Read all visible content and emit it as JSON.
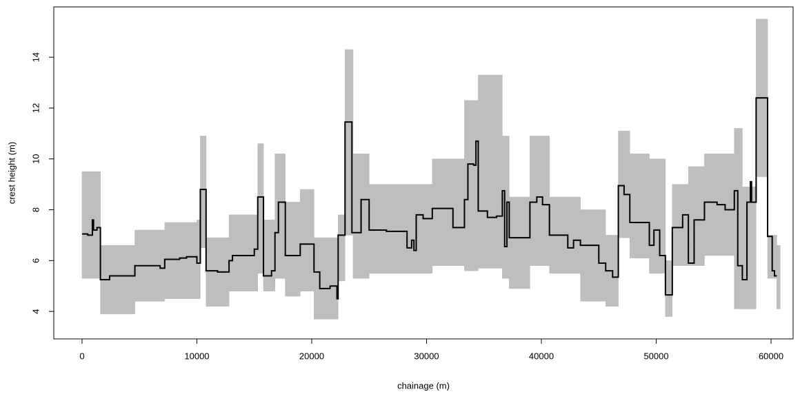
{
  "chart_data": {
    "type": "step",
    "x_label": "chainage (m)",
    "y_label": "crest height (m)",
    "xlim": [
      -2460,
      61920
    ],
    "ylim": [
      2.92,
      15.98
    ],
    "xticks": [
      0,
      10000,
      20000,
      30000,
      40000,
      50000,
      60000
    ],
    "yticks": [
      4,
      6,
      8,
      10,
      12,
      14
    ],
    "series": [
      {
        "color": "#bebebe",
        "x": [
          0,
          1600,
          4600,
          7200,
          10000,
          10300,
          10800,
          12800,
          15300,
          15800,
          16800,
          17700,
          19000,
          20200,
          22300,
          22900,
          23600,
          25000,
          29000,
          30500,
          33300,
          34500,
          36600,
          37200,
          39000,
          40700,
          43400,
          45600,
          46700,
          47700,
          49400,
          50800,
          51400,
          52800,
          54200,
          56800,
          57500,
          58700,
          59700,
          60500
        ],
        "values": [
          9.5,
          6.6,
          7.2,
          7.5,
          7.6,
          10.9,
          6.9,
          7.8,
          10.6,
          7.6,
          10.2,
          8.3,
          8.8,
          6.9,
          7.8,
          14.3,
          10.2,
          9.0,
          9.0,
          10.0,
          12.3,
          13.3,
          10.9,
          8.5,
          10.9,
          8.5,
          8.0,
          7.0,
          11.1,
          10.2,
          10.0,
          6.0,
          9.0,
          9.7,
          10.2,
          11.2,
          8.9,
          15.5,
          7.0,
          6.6
        ]
      },
      {
        "color": "#bebebe",
        "x": [
          0,
          1600,
          4600,
          7200,
          10000,
          10300,
          10800,
          12800,
          15300,
          15800,
          16800,
          17700,
          19000,
          20200,
          22300,
          22900,
          23600,
          25000,
          29000,
          30500,
          33300,
          34500,
          36600,
          37200,
          39000,
          40700,
          43400,
          45600,
          46700,
          47700,
          49400,
          50800,
          51400,
          52800,
          54200,
          56800,
          57500,
          58700,
          59700,
          60500
        ],
        "values": [
          5.3,
          3.9,
          4.4,
          4.5,
          4.5,
          6.5,
          4.2,
          4.8,
          5.5,
          4.8,
          5.3,
          4.6,
          4.8,
          3.7,
          5.2,
          7.0,
          5.3,
          5.5,
          5.5,
          5.8,
          5.6,
          5.7,
          5.3,
          4.9,
          5.8,
          5.5,
          4.4,
          4.2,
          6.9,
          6.1,
          5.5,
          3.8,
          5.8,
          5.8,
          6.2,
          4.1,
          4.1,
          9.3,
          5.3,
          4.1
        ]
      },
      {
        "color": "#000000",
        "x": [
          0,
          500,
          900,
          1000,
          1300,
          1600,
          2400,
          4600,
          6800,
          7200,
          8500,
          9100,
          10000,
          10300,
          10800,
          11800,
          12800,
          13100,
          15000,
          15300,
          15800,
          16500,
          16800,
          17100,
          17700,
          19000,
          20200,
          20700,
          21600,
          22200,
          22300,
          22900,
          23500,
          24300,
          25000,
          26500,
          28300,
          28700,
          28900,
          29100,
          29700,
          30500,
          32300,
          33300,
          33600,
          34100,
          34300,
          34500,
          35300,
          36100,
          36600,
          36800,
          37000,
          37200,
          39000,
          39600,
          40100,
          40700,
          42300,
          42800,
          43400,
          45000,
          45600,
          46200,
          46700,
          47200,
          47700,
          49400,
          49800,
          50300,
          50800,
          51400,
          52300,
          52800,
          53300,
          54200,
          55300,
          56000,
          56800,
          57100,
          57500,
          57900,
          58200,
          58300,
          58700,
          59700,
          60100,
          60300,
          60500
        ],
        "values": [
          7.05,
          7.0,
          7.6,
          7.2,
          7.3,
          5.25,
          5.4,
          5.8,
          5.7,
          6.05,
          6.1,
          6.15,
          5.9,
          8.8,
          5.6,
          5.55,
          6.0,
          6.2,
          6.45,
          8.5,
          5.4,
          5.6,
          7.1,
          8.3,
          6.2,
          6.65,
          5.55,
          4.9,
          5.0,
          4.5,
          7.0,
          11.45,
          7.1,
          8.4,
          7.2,
          7.15,
          6.5,
          6.8,
          6.4,
          7.8,
          7.65,
          8.05,
          7.3,
          8.4,
          9.8,
          9.75,
          10.7,
          7.95,
          7.7,
          7.75,
          8.75,
          6.55,
          8.3,
          6.9,
          8.3,
          8.5,
          8.2,
          7.0,
          6.5,
          6.8,
          6.6,
          5.9,
          5.6,
          5.35,
          8.95,
          8.6,
          7.5,
          6.6,
          7.2,
          6.2,
          4.65,
          7.3,
          7.8,
          5.9,
          7.6,
          8.3,
          8.2,
          8.0,
          8.75,
          5.8,
          5.25,
          8.3,
          9.1,
          8.3,
          12.4,
          6.95,
          5.6,
          5.4,
          5.4
        ]
      }
    ]
  }
}
